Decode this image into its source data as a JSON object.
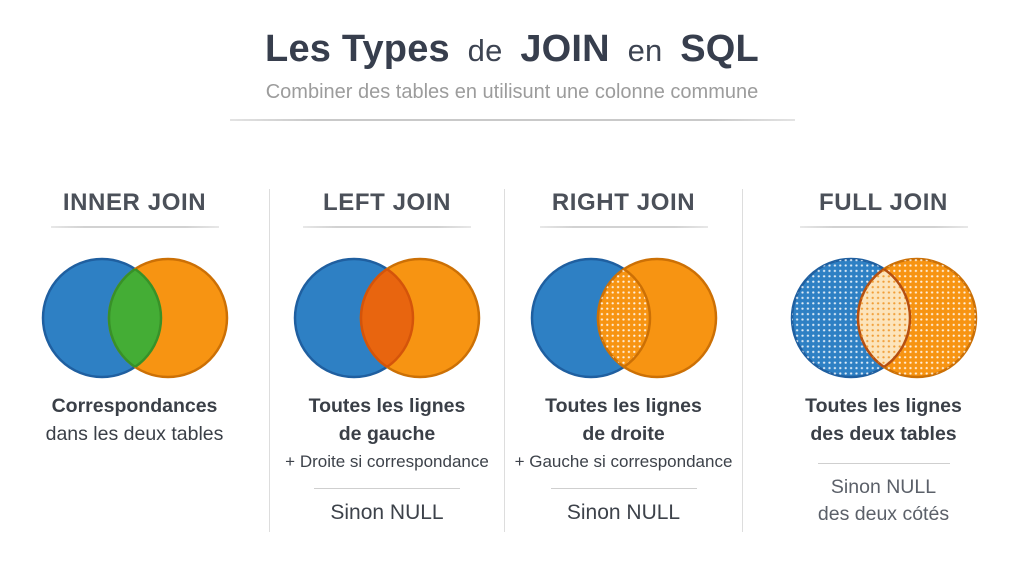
{
  "page": {
    "title_parts": [
      "Les Types",
      "de",
      "JOIN",
      "en",
      "SQL"
    ],
    "subtitle": "Combiner des tables en utilisunt une colonne commune"
  },
  "colors": {
    "blue": "#2e80c4",
    "blue_border": "#1f5fa0",
    "orange": "#f79412",
    "orange_border": "#cc7005",
    "green": "#44ad35",
    "green_border": "#389128",
    "dark_orange": "#e8650f",
    "dark_orange_border": "#d4540a",
    "cream": "#fce4bb",
    "cream_border": "#b64f10",
    "title_text": "#373e4d",
    "subtitle_text": "#9c9c9c",
    "body_text": "#3a3f47"
  },
  "columns": [
    {
      "title": "INNER JOIN",
      "desc1": "Correspondances",
      "desc2": "dans les deux tables",
      "venn": {
        "left": {
          "fill": "#2e80c4",
          "stroke": "#1f5fa0",
          "dots": null
        },
        "right": {
          "fill": "#f79412",
          "stroke": "#cc7005",
          "dots": null
        },
        "inter": {
          "fill": "#44ad35",
          "stroke": "#389128",
          "dots": null
        }
      }
    },
    {
      "title": "LEFT JOIN",
      "desc1": "Toutes les lignes",
      "desc2": "de gauche",
      "note": "+ Droite si correspondance",
      "footer1": "Sinon NULL",
      "venn": {
        "left": {
          "fill": "#2e80c4",
          "stroke": "#1f5fa0",
          "dots": null
        },
        "right": {
          "fill": "#f79412",
          "stroke": "#cc7005",
          "dots": null
        },
        "inter": {
          "fill": "#e8650f",
          "stroke": "#d4540a",
          "dots": null
        }
      }
    },
    {
      "title": "RIGHT JOIN",
      "desc1": "Toutes les lignes",
      "desc2": "de droite",
      "note": "+ Gauche si correspondance",
      "footer1": "Sinon NULL",
      "venn": {
        "left": {
          "fill": "#2e80c4",
          "stroke": "#1f5fa0",
          "dots": null
        },
        "right": {
          "fill": "#f79412",
          "stroke": "#cc7005",
          "dots": null
        },
        "inter": {
          "fill": "#f79412",
          "stroke": "#cc7005",
          "dots": "#ffffff"
        }
      }
    },
    {
      "title": "FULL JOIN",
      "desc1": "Toutes les lignes",
      "desc2": "des deux tables",
      "footer1": "Sinon NULL",
      "footer2": "des deux cótés",
      "venn": {
        "left": {
          "fill": "#2e80c4",
          "stroke": "#1f5fa0",
          "dots": "#ffffff"
        },
        "right": {
          "fill": "#f79412",
          "stroke": "#cc7005",
          "dots": "#ffffff"
        },
        "inter": {
          "fill": "#fce4bb",
          "stroke": "#b64f10",
          "dots": "#ef9220"
        }
      }
    }
  ]
}
